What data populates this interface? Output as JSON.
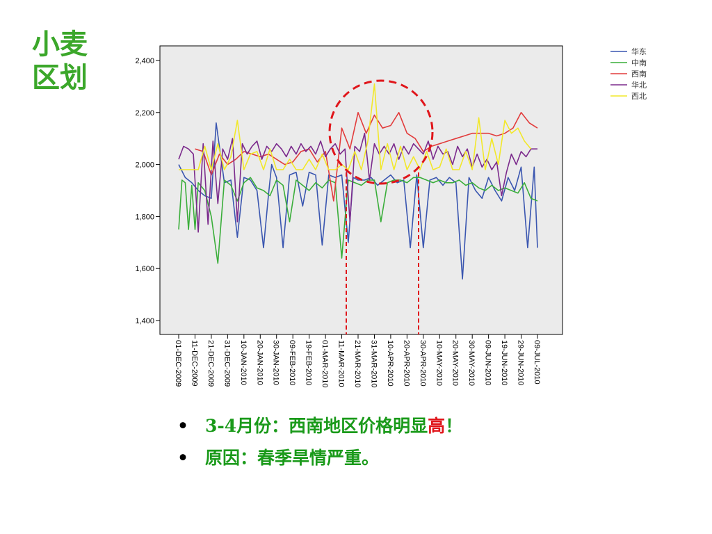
{
  "title_lines": [
    "小麦",
    "区划"
  ],
  "bullets": [
    {
      "text": "3-4月份：西南地区价格明显",
      "highlight": "高",
      "suffix": "！"
    },
    {
      "text": "原因：春季旱情严重。"
    }
  ],
  "annotation": {
    "shape": "dashed-circle-with-guides",
    "color": "#e0161b"
  },
  "chart_data": {
    "type": "line",
    "grid": false,
    "legend_position": "top-right",
    "ylim": [
      1400,
      2400
    ],
    "yticks": [
      1400,
      1600,
      1800,
      2000,
      2200,
      2400
    ],
    "ytick_labels": [
      "1,400",
      "1,600",
      "1,800",
      "2,000",
      "2,200",
      "2,400"
    ],
    "x_tick_labels": [
      "01-DEC-2009",
      "11-DEC-2009",
      "21-DEC-2009",
      "31-DEC-2009",
      "10-JAN-2010",
      "20-JAN-2010",
      "30-JAN-2010",
      "09-FEB-2010",
      "19-FEB-2010",
      "01-MAR-2010",
      "11-MAR-2010",
      "21-MAR-2010",
      "31-MAR-2010",
      "10-APR-2010",
      "20-APR-2010",
      "30-APR-2010",
      "10-MAY-2010",
      "20-MAY-2010",
      "30-MAY-2010",
      "09-JUN-2010",
      "19-JUN-2010",
      "29-JUN-2010",
      "09-JUL-2010"
    ],
    "series": [
      {
        "name": "华东",
        "color": "#3a56b0",
        "x": [
          0,
          4,
          8,
          12,
          16,
          20,
          23,
          28,
          32,
          36,
          40,
          44,
          48,
          52,
          55,
          57,
          60,
          64,
          68,
          72,
          76,
          80,
          84,
          88,
          92,
          96,
          100,
          104,
          107,
          110,
          114,
          118,
          122,
          126,
          130,
          134,
          138,
          142,
          146,
          150,
          154,
          158,
          162,
          166,
          170,
          174,
          178,
          182,
          186,
          190,
          194,
          198,
          202,
          206,
          210,
          214,
          218,
          220
        ],
        "values": [
          2000,
          1950,
          1930,
          1900,
          1880,
          1870,
          2160,
          1930,
          1940,
          1720,
          1950,
          1940,
          1900,
          1680,
          1880,
          2000,
          1950,
          1680,
          1960,
          1970,
          1840,
          1970,
          1960,
          1690,
          1960,
          1950,
          1960,
          1700,
          1950,
          1940,
          1940,
          1950,
          1920,
          1940,
          1960,
          1930,
          1940,
          1680,
          1960,
          1680,
          1940,
          1950,
          1920,
          1950,
          1930,
          1560,
          1950,
          1900,
          1870,
          1950,
          1900,
          1860,
          1950,
          1900,
          1990,
          1680,
          1990,
          1680
        ]
      },
      {
        "name": "中南",
        "color": "#3aae3a",
        "x": [
          0,
          2,
          4,
          6,
          8,
          10,
          12,
          16,
          20,
          24,
          28,
          32,
          36,
          40,
          44,
          48,
          52,
          56,
          60,
          64,
          68,
          72,
          76,
          80,
          84,
          88,
          92,
          96,
          100,
          104,
          108,
          112,
          116,
          120,
          124,
          128,
          132,
          136,
          140,
          144,
          148,
          152,
          156,
          160,
          164,
          168,
          172,
          176,
          180,
          184,
          188,
          192,
          196,
          200,
          204,
          208,
          212,
          216,
          220
        ],
        "values": [
          1750,
          1940,
          1930,
          1750,
          1920,
          1750,
          1930,
          1900,
          1800,
          1620,
          1940,
          1920,
          1860,
          1930,
          1950,
          1910,
          1900,
          1880,
          1940,
          1920,
          1780,
          1940,
          1920,
          1900,
          1930,
          1910,
          1940,
          1930,
          1640,
          1940,
          1930,
          1920,
          1940,
          1940,
          1780,
          1930,
          1940,
          1940,
          1930,
          1950,
          1950,
          1940,
          1930,
          1940,
          1930,
          1930,
          1940,
          1920,
          1930,
          1910,
          1900,
          1920,
          1900,
          1910,
          1900,
          1890,
          1930,
          1870,
          1860
        ]
      },
      {
        "name": "西南",
        "color": "#e23c3c",
        "x": [
          10,
          15,
          20,
          25,
          30,
          35,
          40,
          45,
          50,
          55,
          60,
          65,
          70,
          75,
          80,
          85,
          90,
          95,
          100,
          105,
          110,
          115,
          120,
          125,
          130,
          135,
          140,
          145,
          150,
          155,
          160,
          165,
          170,
          175,
          180,
          185,
          190,
          195,
          200,
          205,
          210,
          215,
          220
        ],
        "values": [
          2060,
          2050,
          1960,
          2040,
          2000,
          2020,
          2050,
          2040,
          2030,
          2040,
          2020,
          2000,
          2010,
          2050,
          2060,
          2010,
          2050,
          1860,
          2140,
          2060,
          2200,
          2120,
          2190,
          2140,
          2150,
          2200,
          2120,
          2100,
          2050,
          2070,
          2080,
          2090,
          2100,
          2110,
          2120,
          2120,
          2120,
          2110,
          2120,
          2140,
          2200,
          2160,
          2140
        ]
      },
      {
        "name": "华北",
        "color": "#7b2a8c",
        "x": [
          0,
          3,
          6,
          9,
          12,
          15,
          18,
          21,
          24,
          27,
          30,
          33,
          36,
          39,
          42,
          45,
          48,
          51,
          54,
          57,
          60,
          63,
          66,
          69,
          72,
          75,
          78,
          81,
          84,
          87,
          90,
          93,
          96,
          99,
          102,
          105,
          108,
          111,
          114,
          117,
          120,
          123,
          126,
          129,
          132,
          135,
          138,
          141,
          144,
          147,
          150,
          153,
          156,
          159,
          162,
          165,
          168,
          171,
          174,
          177,
          180,
          183,
          186,
          189,
          192,
          195,
          198,
          201,
          204,
          207,
          210,
          213,
          216,
          220
        ],
        "values": [
          2020,
          2070,
          2060,
          2040,
          1740,
          2080,
          1770,
          2090,
          1850,
          2060,
          2020,
          2100,
          1780,
          2080,
          2040,
          2070,
          2090,
          2020,
          2070,
          2050,
          2080,
          2060,
          2030,
          2070,
          2040,
          2080,
          2050,
          2070,
          2040,
          2090,
          2030,
          2060,
          2080,
          2040,
          2060,
          1780,
          2070,
          2050,
          2120,
          1940,
          2080,
          2040,
          2070,
          2040,
          2080,
          2020,
          2070,
          2040,
          2080,
          2060,
          2040,
          2090,
          2020,
          2070,
          2040,
          2050,
          2000,
          2070,
          2030,
          2060,
          1990,
          2040,
          1990,
          2020,
          1980,
          2010,
          1880,
          1970,
          2040,
          2000,
          2050,
          2030,
          2060,
          2060
        ]
      },
      {
        "name": "西北",
        "color": "#f2e82a",
        "x": [
          0,
          4,
          8,
          12,
          16,
          20,
          24,
          28,
          32,
          36,
          40,
          44,
          48,
          52,
          56,
          60,
          64,
          68,
          72,
          76,
          80,
          84,
          88,
          92,
          96,
          100,
          104,
          108,
          112,
          116,
          120,
          124,
          128,
          132,
          136,
          140,
          144,
          148,
          152,
          156,
          160,
          164,
          168,
          172,
          176,
          180,
          184,
          188,
          192,
          196,
          200,
          204,
          208,
          212,
          216
        ],
        "values": [
          1980,
          1980,
          1980,
          1980,
          2070,
          1980,
          2080,
          1980,
          2030,
          2170,
          1980,
          2040,
          2050,
          1980,
          2060,
          1980,
          1980,
          2020,
          1980,
          1980,
          2020,
          1980,
          2040,
          1980,
          1980,
          2000,
          1980,
          2050,
          1980,
          2090,
          2310,
          1980,
          2080,
          1980,
          2070,
          1980,
          2030,
          1980,
          2050,
          1980,
          1990,
          2060,
          1980,
          1980,
          2050,
          1980,
          2180,
          1980,
          2100,
          2000,
          2170,
          2120,
          2140,
          2090,
          2060
        ]
      }
    ]
  }
}
